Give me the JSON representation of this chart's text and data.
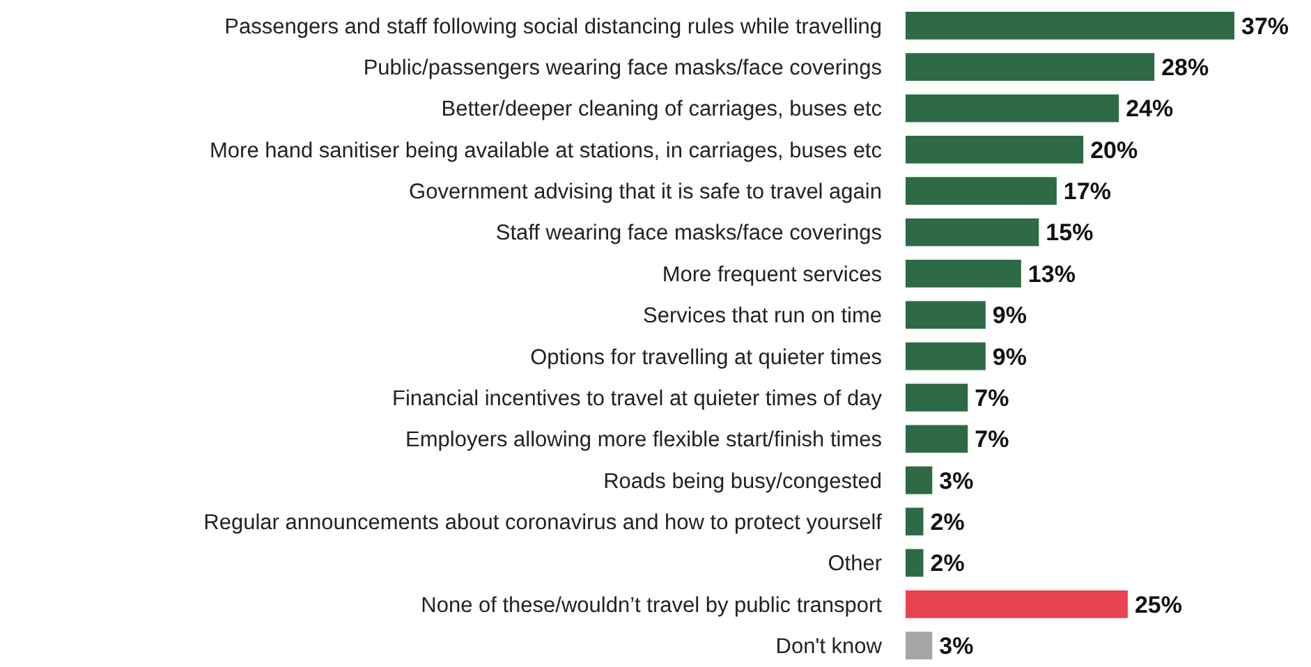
{
  "chart_data": {
    "type": "bar",
    "orientation": "horizontal",
    "categories": [
      "Passengers and staff following social distancing rules while travelling",
      "Public/passengers wearing face masks/face coverings",
      "Better/deeper cleaning of carriages, buses etc",
      "More hand sanitiser being available at stations, in carriages, buses etc",
      "Government advising that it is safe to travel again",
      "Staff wearing face masks/face coverings",
      "More frequent services",
      "Services that run on time",
      "Options for travelling at quieter times",
      "Financial incentives to travel at quieter times of day",
      "Employers allowing more flexible start/finish times",
      "Roads being busy/congested",
      "Regular announcements about coronavirus and how to protect yourself",
      "Other",
      "None of these/wouldn’t travel by public transport",
      "Don't know"
    ],
    "values": [
      37,
      28,
      24,
      20,
      17,
      15,
      13,
      9,
      9,
      7,
      7,
      3,
      2,
      2,
      25,
      3
    ],
    "value_labels": [
      "37%",
      "28%",
      "24%",
      "20%",
      "17%",
      "15%",
      "13%",
      "9%",
      "9%",
      "7%",
      "7%",
      "3%",
      "2%",
      "2%",
      "25%",
      "3%"
    ],
    "colors": [
      "#2d6a45",
      "#2d6a45",
      "#2d6a45",
      "#2d6a45",
      "#2d6a45",
      "#2d6a45",
      "#2d6a45",
      "#2d6a45",
      "#2d6a45",
      "#2d6a45",
      "#2d6a45",
      "#2d6a45",
      "#2d6a45",
      "#2d6a45",
      "#e8434f",
      "#a6a6a6"
    ]
  }
}
